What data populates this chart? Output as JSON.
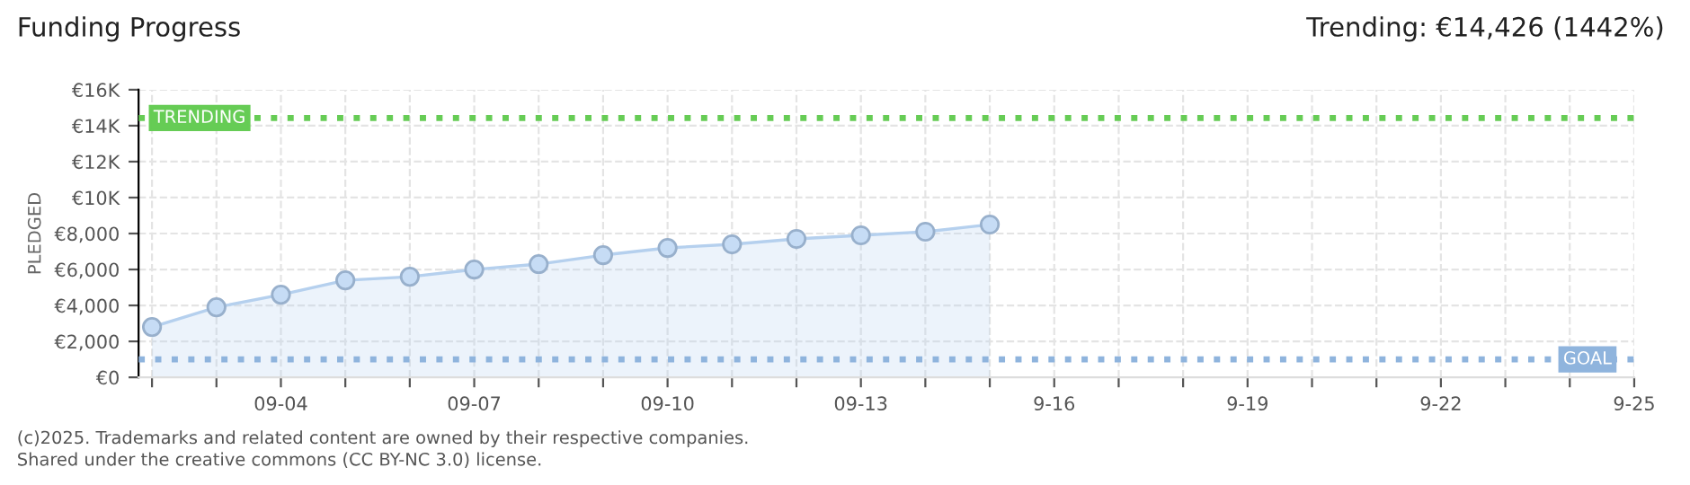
{
  "chart_data": {
    "type": "area",
    "title": "Funding Progress",
    "subtitle": "Trending: €14,426 (1442%)",
    "ylabel": "PLEDGED",
    "x": [
      "2025-09-02",
      "2025-09-03",
      "2025-09-04",
      "2025-09-05",
      "2025-09-06",
      "2025-09-07",
      "2025-09-08",
      "2025-09-09",
      "2025-09-10",
      "2025-09-11",
      "2025-09-12",
      "2025-09-13",
      "2025-09-14",
      "2025-09-15"
    ],
    "series": [
      {
        "color": "#b5d0ee",
        "values": [
          2800,
          3900,
          4600,
          5400,
          5600,
          6000,
          6300,
          6800,
          7200,
          7400,
          7700,
          7900,
          8100,
          8500
        ]
      }
    ],
    "marker": "circle",
    "grid": true,
    "xlim": [
      "2025-09-01T19:00",
      "2025-09-25"
    ],
    "xticks": [
      {
        "value": "2025-09-02",
        "label": null
      },
      {
        "value": "2025-09-03",
        "label": null
      },
      {
        "value": "2025-09-04",
        "label": "09-04"
      },
      {
        "value": "2025-09-05",
        "label": null
      },
      {
        "value": "2025-09-06",
        "label": null
      },
      {
        "value": "2025-09-07",
        "label": "09-07"
      },
      {
        "value": "2025-09-08",
        "label": null
      },
      {
        "value": "2025-09-09",
        "label": null
      },
      {
        "value": "2025-09-10",
        "label": "09-10"
      },
      {
        "value": "2025-09-11",
        "label": null
      },
      {
        "value": "2025-09-12",
        "label": null
      },
      {
        "value": "2025-09-13",
        "label": "09-13"
      },
      {
        "value": "2025-09-14",
        "label": null
      },
      {
        "value": "2025-09-15",
        "label": null
      },
      {
        "value": "2025-09-16",
        "label": "9-16"
      },
      {
        "value": "2025-09-17",
        "label": null
      },
      {
        "value": "2025-09-18",
        "label": null
      },
      {
        "value": "2025-09-19",
        "label": "9-19"
      },
      {
        "value": "2025-09-20",
        "label": null
      },
      {
        "value": "2025-09-21",
        "label": null
      },
      {
        "value": "2025-09-22",
        "label": "9-22"
      },
      {
        "value": "2025-09-23",
        "label": null
      },
      {
        "value": "2025-09-24",
        "label": null
      },
      {
        "value": "2025-09-25",
        "label": "9-25"
      }
    ],
    "ylim": [
      0,
      16000
    ],
    "yticks": [
      {
        "value": 0,
        "label": "€0"
      },
      {
        "value": 2000,
        "label": "€2,000"
      },
      {
        "value": 4000,
        "label": "€4,000"
      },
      {
        "value": 6000,
        "label": "€6,000"
      },
      {
        "value": 8000,
        "label": "€8,000"
      },
      {
        "value": 10000,
        "label": "€10K"
      },
      {
        "value": 12000,
        "label": "€12K"
      },
      {
        "value": 14000,
        "label": "€14K"
      },
      {
        "value": 16000,
        "label": "€16K"
      }
    ],
    "ref_lines": [
      {
        "axis": "y",
        "value": 14426,
        "label": "TRENDING",
        "color": "#66cc55",
        "line_style": "dotted"
      },
      {
        "axis": "y",
        "value": 1000,
        "label": "GOAL",
        "color": "#8fb4dd",
        "line_style": "dotted"
      }
    ],
    "annotations": [
      "(c)2025. Trademarks and related content are owned by their respective companies.",
      "Shared under the creative commons (CC BY-NC 3.0) license."
    ]
  }
}
